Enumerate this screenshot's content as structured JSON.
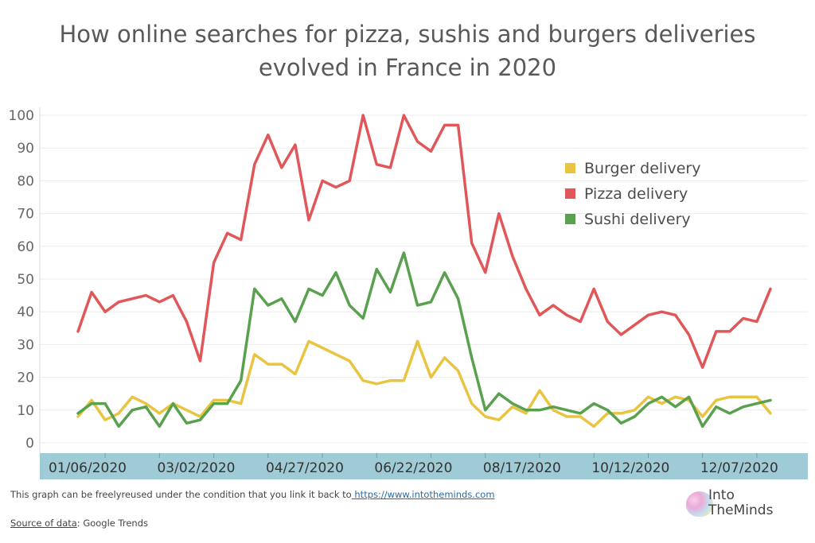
{
  "title_lines": [
    "How online searches for pizza, sushis and burgers deliveries",
    "evolved in France in 2020"
  ],
  "footer": {
    "note_text": "This graph can be freelyreused under the condition that you link it back to",
    "note_link": " https://www.intotheminds.com",
    "source_label": "Source of data",
    "source_value": ": Google Trends"
  },
  "logo": {
    "line1": "Into",
    "line2": "TheMinds"
  },
  "chart_data": {
    "type": "line",
    "title": "How online searches for pizza, sushis and burgers deliveries evolved in France in 2020",
    "xlabel": "",
    "ylabel": "",
    "ylim": [
      0,
      100
    ],
    "y_ticks": [
      0,
      10,
      20,
      30,
      40,
      50,
      60,
      70,
      80,
      90,
      100
    ],
    "x_tick_labels": [
      {
        "label": "01/06/2020",
        "index": 0
      },
      {
        "label": "03/02/2020",
        "index": 8
      },
      {
        "label": "04/27/2020",
        "index": 16
      },
      {
        "label": "06/22/2020",
        "index": 24
      },
      {
        "label": "08/17/2020",
        "index": 32
      },
      {
        "label": "10/12/2020",
        "index": 40
      },
      {
        "label": "12/07/2020",
        "index": 48
      }
    ],
    "n_points": 52,
    "legend_position": "top-right",
    "grid": true,
    "series": [
      {
        "name": "Burger delivery",
        "color": "#e9c441",
        "values": [
          8,
          13,
          7,
          9,
          14,
          12,
          9,
          12,
          10,
          8,
          13,
          13,
          12,
          27,
          24,
          24,
          21,
          31,
          29,
          27,
          25,
          19,
          18,
          19,
          19,
          31,
          20,
          26,
          22,
          12,
          8,
          7,
          11,
          9,
          16,
          10,
          8,
          8,
          5,
          9,
          9,
          10,
          14,
          12,
          14,
          13,
          8,
          13,
          14,
          14,
          14,
          9
        ]
      },
      {
        "name": "Pizza delivery",
        "color": "#e15759",
        "values": [
          34,
          46,
          40,
          43,
          44,
          45,
          43,
          45,
          37,
          25,
          55,
          64,
          62,
          85,
          94,
          84,
          91,
          68,
          80,
          78,
          80,
          100,
          85,
          84,
          100,
          92,
          89,
          97,
          97,
          61,
          52,
          70,
          57,
          47,
          39,
          42,
          39,
          37,
          47,
          37,
          33,
          36,
          39,
          40,
          39,
          33,
          23,
          34,
          34,
          38,
          37,
          47
        ]
      },
      {
        "name": "Sushi delivery",
        "color": "#59a14f",
        "values": [
          9,
          12,
          12,
          5,
          10,
          11,
          5,
          12,
          6,
          7,
          12,
          12,
          19,
          47,
          42,
          44,
          37,
          47,
          45,
          52,
          42,
          38,
          53,
          46,
          58,
          42,
          43,
          52,
          44,
          26,
          10,
          15,
          12,
          10,
          10,
          11,
          10,
          9,
          12,
          10,
          6,
          8,
          12,
          14,
          11,
          14,
          5,
          11,
          9,
          11,
          12,
          13
        ]
      }
    ]
  }
}
